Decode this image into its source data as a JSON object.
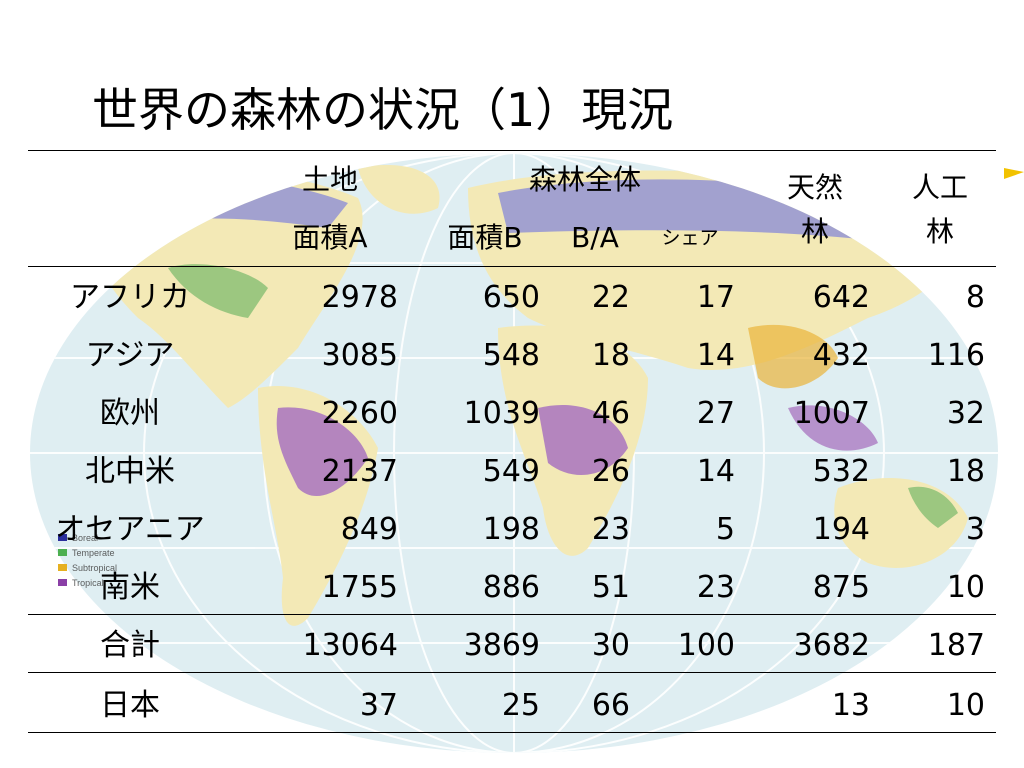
{
  "slide": {
    "title": "世界の森林の状況（1）現況"
  },
  "map": {
    "legend": [
      {
        "label": "Boreal",
        "color": "#2a2e9c"
      },
      {
        "label": "Temperate",
        "color": "#4caf50"
      },
      {
        "label": "Subtropical",
        "color": "#e6b020"
      },
      {
        "label": "Tropical",
        "color": "#8a3fa6"
      }
    ]
  },
  "table": {
    "headers": {
      "land_line1": "土地",
      "land_line2": "面積A",
      "forest_total": "森林全体",
      "forest_area": "面積B",
      "ratio": "B/A",
      "share": "シェア",
      "natural_line1": "天然",
      "natural_line2": "林",
      "planted_line1": "人工",
      "planted_line2": "林"
    },
    "rows": [
      {
        "region": "アフリカ",
        "land": "2978",
        "forest": "650",
        "ratio": "22",
        "share": "17",
        "natural": "642",
        "planted": "8"
      },
      {
        "region": "アジア",
        "land": "3085",
        "forest": "548",
        "ratio": "18",
        "share": "14",
        "natural": "432",
        "planted": "116"
      },
      {
        "region": "欧州",
        "land": "2260",
        "forest": "1039",
        "ratio": "46",
        "share": "27",
        "natural": "1007",
        "planted": "32"
      },
      {
        "region": "北中米",
        "land": "2137",
        "forest": "549",
        "ratio": "26",
        "share": "14",
        "natural": "532",
        "planted": "18"
      },
      {
        "region": "オセアニア",
        "land": "849",
        "forest": "198",
        "ratio": "23",
        "share": "5",
        "natural": "194",
        "planted": "3"
      },
      {
        "region": "南米",
        "land": "1755",
        "forest": "886",
        "ratio": "51",
        "share": "23",
        "natural": "875",
        "planted": "10"
      }
    ],
    "total": {
      "region": "合計",
      "land": "13064",
      "forest": "3869",
      "ratio": "30",
      "share": "100",
      "natural": "3682",
      "planted": "187"
    },
    "japan": {
      "region": "日本",
      "land": "37",
      "forest": "25",
      "ratio": "66",
      "share": "",
      "natural": "13",
      "planted": "10"
    }
  }
}
